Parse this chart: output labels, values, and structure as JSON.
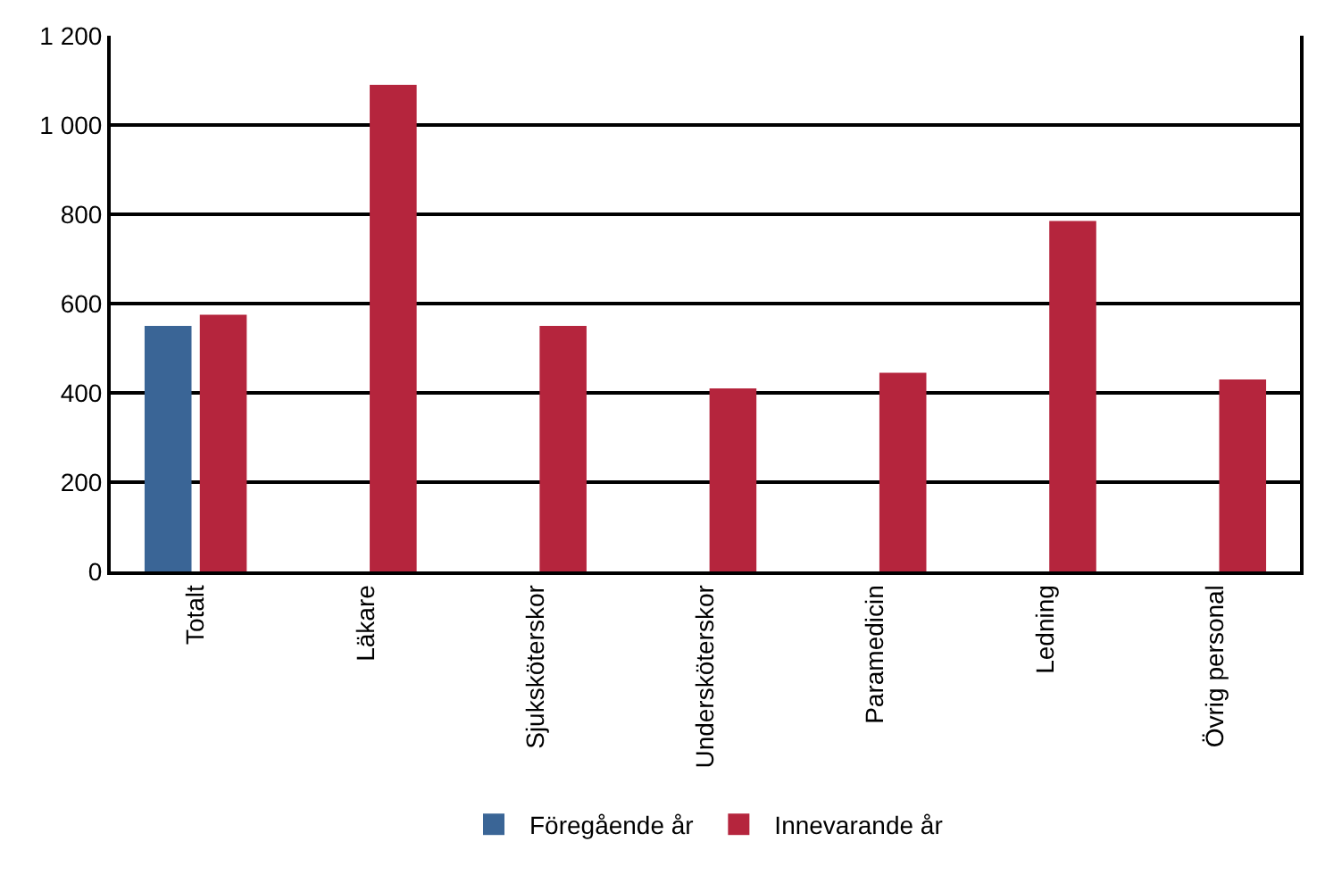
{
  "chart_data": {
    "type": "bar",
    "categories": [
      "Totalt",
      "Läkare",
      "Sjuksköterskor",
      "Undersköterskor",
      "Paramedicin",
      "Ledning",
      "Övrig personal"
    ],
    "series": [
      {
        "name": "Föregående år",
        "color": "#3a6596",
        "values": [
          550,
          null,
          null,
          null,
          null,
          null,
          null
        ]
      },
      {
        "name": "Innevarande år",
        "color": "#b5253d",
        "values": [
          575,
          1090,
          550,
          410,
          445,
          785,
          430
        ]
      }
    ],
    "ylim": [
      0,
      1200
    ],
    "yticks": [
      0,
      200,
      400,
      600,
      800,
      {
        "value": 1000,
        "label": "1 000"
      },
      {
        "value": 1200,
        "label": "1 200"
      }
    ],
    "grid": "y",
    "legend": "bottom"
  }
}
